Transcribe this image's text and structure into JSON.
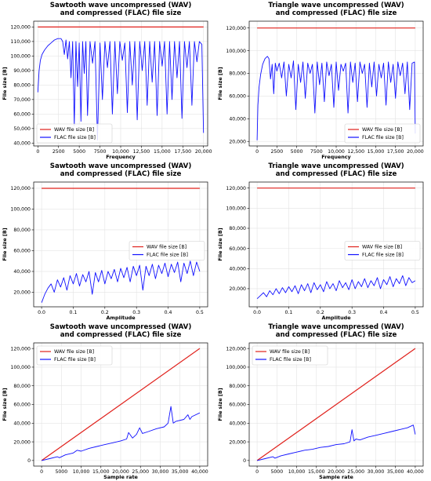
{
  "legend_labels": {
    "wav": "WAV file size [B]",
    "flac": "FLAC file size [B]"
  },
  "colors": {
    "wav": "#e0201b",
    "flac": "#1010ff"
  },
  "chart_data": [
    {
      "type": "line",
      "title": [
        "Sawtooth wave uncompressed (WAV)",
        "and compressed (FLAC) file size"
      ],
      "xlabel": "Frequency",
      "ylabel": "File size [B]",
      "xlim": [
        -500,
        20500
      ],
      "ylim": [
        38000,
        124000
      ],
      "xticks": [
        0,
        2500,
        5000,
        7500,
        10000,
        12500,
        15000,
        17500,
        20000
      ],
      "xtick_labels": [
        "0",
        "2500",
        "5000",
        "7500",
        "10,000",
        "12,500",
        "15,000",
        "17,500",
        "20,000"
      ],
      "yticks": [
        40000,
        50000,
        60000,
        70000,
        80000,
        90000,
        100000,
        110000,
        120000
      ],
      "ytick_labels": [
        "40,000",
        "50,000",
        "60,000",
        "70,000",
        "80,000",
        "90,000",
        "100,000",
        "110,000",
        "120,000"
      ],
      "legend_position": "lower-left",
      "grid": true,
      "series": [
        {
          "key": "wav",
          "name": "WAV file size [B]",
          "x": [
            0,
            20000
          ],
          "y": [
            120000,
            120000
          ]
        },
        {
          "key": "flac",
          "name": "FLAC file size [B]",
          "x": [
            0,
            150,
            300,
            500,
            800,
            1200,
            1600,
            2000,
            2400,
            2800,
            3000,
            3200,
            3400,
            3600,
            3800,
            4000,
            4200,
            4400,
            4600,
            4800,
            5000,
            5200,
            5400,
            5600,
            5800,
            6000,
            6300,
            6600,
            6900,
            7200,
            7500,
            7800,
            8100,
            8400,
            8700,
            9000,
            9300,
            9600,
            9900,
            10200,
            10500,
            10800,
            11100,
            11400,
            11700,
            12000,
            12300,
            12600,
            12900,
            13200,
            13500,
            13800,
            14100,
            14400,
            14700,
            15000,
            15300,
            15600,
            15900,
            16200,
            16500,
            16800,
            17100,
            17400,
            17700,
            18000,
            18300,
            18600,
            18900,
            19200,
            19500,
            19800,
            20000
          ],
          "y": [
            75000,
            90000,
            97000,
            101000,
            104000,
            107000,
            109000,
            111000,
            112000,
            112000,
            110000,
            101000,
            111000,
            98000,
            110000,
            85000,
            110000,
            52000,
            110000,
            79000,
            109000,
            55000,
            110000,
            88000,
            110000,
            59000,
            110000,
            95000,
            110000,
            42000,
            109000,
            70000,
            110000,
            92000,
            110000,
            60000,
            110000,
            74000,
            110000,
            97000,
            109000,
            61000,
            110000,
            80000,
            110000,
            56000,
            110000,
            90000,
            110000,
            66000,
            110000,
            82000,
            110000,
            59000,
            110000,
            93000,
            110000,
            60000,
            110000,
            70000,
            110000,
            85000,
            110000,
            57000,
            110000,
            92000,
            110000,
            66000,
            110000,
            96000,
            110000,
            108000,
            47000
          ]
        }
      ]
    },
    {
      "type": "line",
      "title": [
        "Triangle wave uncompressed (WAV)",
        "and compressed (FLAC) file size"
      ],
      "xlabel": "Frequency",
      "ylabel": "File size [B]",
      "xlim": [
        -1000,
        21000
      ],
      "ylim": [
        16000,
        126000
      ],
      "xticks": [
        0,
        2500,
        5000,
        7500,
        10000,
        12500,
        15000,
        17500,
        20000
      ],
      "xtick_labels": [
        "0",
        "2500",
        "5000",
        "7500",
        "10,000",
        "12,500",
        "15,000",
        "17,500",
        "20,000"
      ],
      "yticks": [
        20000,
        40000,
        60000,
        80000,
        100000,
        120000
      ],
      "ytick_labels": [
        "20,000",
        "40,000",
        "60,000",
        "80,000",
        "100,000",
        "120,000"
      ],
      "legend_position": "lower-right",
      "grid": true,
      "series": [
        {
          "key": "wav",
          "name": "WAV file size [B]",
          "x": [
            0,
            20000
          ],
          "y": [
            120000,
            120000
          ]
        },
        {
          "key": "flac",
          "name": "FLAC file size [B]",
          "x": [
            0,
            100,
            250,
            450,
            700,
            1000,
            1300,
            1500,
            1700,
            1900,
            2100,
            2300,
            2500,
            2800,
            3100,
            3400,
            3700,
            4000,
            4300,
            4600,
            4900,
            5200,
            5500,
            5800,
            6100,
            6400,
            6700,
            7000,
            7300,
            7600,
            7900,
            8200,
            8500,
            8800,
            9100,
            9400,
            9700,
            10000,
            10300,
            10600,
            10900,
            11200,
            11500,
            11800,
            12100,
            12400,
            12700,
            13000,
            13300,
            13600,
            13900,
            14200,
            14500,
            14800,
            15100,
            15400,
            15700,
            16000,
            16300,
            16600,
            16900,
            17200,
            17500,
            17800,
            18100,
            18400,
            18700,
            19000,
            19300,
            19600,
            19900,
            20000
          ],
          "y": [
            21000,
            52000,
            68000,
            79000,
            88000,
            93000,
            95000,
            93000,
            75000,
            88000,
            62000,
            89000,
            82000,
            89000,
            76000,
            90000,
            60000,
            88000,
            76000,
            91000,
            48000,
            88000,
            72000,
            90000,
            58000,
            89000,
            80000,
            88000,
            45000,
            90000,
            70000,
            89000,
            55000,
            90000,
            78000,
            88000,
            50000,
            90000,
            65000,
            88000,
            82000,
            89000,
            45000,
            90000,
            72000,
            89000,
            55000,
            90000,
            80000,
            88000,
            50000,
            89000,
            68000,
            90000,
            60000,
            88000,
            76000,
            89000,
            52000,
            90000,
            72000,
            88000,
            58000,
            90000,
            78000,
            89000,
            62000,
            90000,
            48000,
            89000,
            90000,
            27000
          ]
        }
      ]
    },
    {
      "type": "line",
      "title": [
        "Sawtooth wave uncompressed (WAV)",
        "and compressed (FLAC) file size"
      ],
      "xlabel": "Amplitude",
      "ylabel": "File size [B]",
      "xlim": [
        -0.025,
        0.525
      ],
      "ylim": [
        6000,
        126000
      ],
      "xticks": [
        0.0,
        0.1,
        0.2,
        0.3,
        0.4,
        0.5
      ],
      "xtick_labels": [
        "0.0",
        "0.1",
        "0.2",
        "0.3",
        "0.4",
        "0.5"
      ],
      "yticks": [
        20000,
        40000,
        60000,
        80000,
        100000,
        120000
      ],
      "ytick_labels": [
        "20,000",
        "40,000",
        "60,000",
        "80,000",
        "100,000",
        "120,000"
      ],
      "legend_position": "center-right",
      "grid": true,
      "series": [
        {
          "key": "wav",
          "name": "WAV file size [B]",
          "x": [
            0,
            0.5
          ],
          "y": [
            120000,
            120000
          ]
        },
        {
          "key": "flac",
          "name": "FLAC file size [B]",
          "x": [
            0.0,
            0.01,
            0.02,
            0.03,
            0.04,
            0.05,
            0.06,
            0.07,
            0.08,
            0.09,
            0.1,
            0.11,
            0.12,
            0.13,
            0.14,
            0.15,
            0.16,
            0.17,
            0.18,
            0.19,
            0.2,
            0.21,
            0.22,
            0.23,
            0.24,
            0.25,
            0.26,
            0.27,
            0.28,
            0.29,
            0.3,
            0.31,
            0.32,
            0.33,
            0.34,
            0.35,
            0.36,
            0.37,
            0.38,
            0.39,
            0.4,
            0.41,
            0.42,
            0.43,
            0.44,
            0.45,
            0.46,
            0.47,
            0.48,
            0.49,
            0.5
          ],
          "y": [
            10000,
            18000,
            24000,
            28000,
            20000,
            32000,
            25000,
            34000,
            22000,
            36000,
            28000,
            38000,
            26000,
            37000,
            30000,
            40000,
            18000,
            39000,
            30000,
            41000,
            28000,
            40000,
            33000,
            42000,
            30000,
            43000,
            34000,
            44000,
            30000,
            45000,
            36000,
            46000,
            22000,
            45000,
            36000,
            47000,
            33000,
            46000,
            38000,
            48000,
            35000,
            47000,
            39000,
            49000,
            30000,
            48000,
            38000,
            50000,
            36000,
            49000,
            40000
          ]
        }
      ]
    },
    {
      "type": "line",
      "title": [
        "Triangle wave uncompressed (WAV)",
        "and compressed (FLAC) file size"
      ],
      "xlabel": "Amplitude",
      "ylabel": "File size [B]",
      "xlim": [
        -0.025,
        0.525
      ],
      "ylim": [
        2000,
        126000
      ],
      "xticks": [
        0.0,
        0.1,
        0.2,
        0.3,
        0.4,
        0.5
      ],
      "xtick_labels": [
        "0.0",
        "0.1",
        "0.2",
        "0.3",
        "0.4",
        "0.5"
      ],
      "yticks": [
        20000,
        40000,
        60000,
        80000,
        100000,
        120000
      ],
      "ytick_labels": [
        "20,000",
        "40,000",
        "60,000",
        "80,000",
        "100,000",
        "120,000"
      ],
      "legend_position": "center-right",
      "grid": true,
      "series": [
        {
          "key": "wav",
          "name": "WAV file size [B]",
          "x": [
            0,
            0.5
          ],
          "y": [
            120000,
            120000
          ]
        },
        {
          "key": "flac",
          "name": "FLAC file size [B]",
          "x": [
            0.0,
            0.01,
            0.02,
            0.03,
            0.04,
            0.05,
            0.06,
            0.07,
            0.08,
            0.09,
            0.1,
            0.11,
            0.12,
            0.13,
            0.14,
            0.15,
            0.16,
            0.17,
            0.18,
            0.19,
            0.2,
            0.21,
            0.22,
            0.23,
            0.24,
            0.25,
            0.26,
            0.27,
            0.28,
            0.29,
            0.3,
            0.31,
            0.32,
            0.33,
            0.34,
            0.35,
            0.36,
            0.37,
            0.38,
            0.39,
            0.4,
            0.41,
            0.42,
            0.43,
            0.44,
            0.45,
            0.46,
            0.47,
            0.48,
            0.49,
            0.5
          ],
          "y": [
            10000,
            13000,
            16000,
            12000,
            18000,
            14000,
            20000,
            15000,
            21000,
            16000,
            22000,
            17000,
            23000,
            15000,
            24000,
            18000,
            25000,
            16000,
            26000,
            19000,
            24000,
            17000,
            27000,
            20000,
            25000,
            18000,
            28000,
            21000,
            26000,
            19000,
            29000,
            20000,
            27000,
            22000,
            30000,
            21000,
            28000,
            23000,
            31000,
            20000,
            29000,
            24000,
            32000,
            22000,
            30000,
            25000,
            33000,
            23000,
            31000,
            26000,
            28000
          ]
        }
      ]
    },
    {
      "type": "line",
      "title": [
        "Sawtooth wave uncompressed (WAV)",
        "and compressed (FLAC) file size"
      ],
      "xlabel": "Sample rate",
      "ylabel": "File size [B]",
      "xlim": [
        -2000,
        42000
      ],
      "ylim": [
        -6000,
        126000
      ],
      "xticks": [
        0,
        5000,
        10000,
        15000,
        20000,
        25000,
        30000,
        35000,
        40000
      ],
      "xtick_labels": [
        "0",
        "5000",
        "10,000",
        "15,000",
        "20,000",
        "25,000",
        "30,000",
        "35,000",
        "40,000"
      ],
      "yticks": [
        0,
        20000,
        40000,
        60000,
        80000,
        100000,
        120000
      ],
      "ytick_labels": [
        "0",
        "20,000",
        "40,000",
        "60,000",
        "80,000",
        "100,000",
        "120,000"
      ],
      "legend_position": "top-left",
      "grid": true,
      "series": [
        {
          "key": "wav",
          "name": "WAV file size [B]",
          "x": [
            0,
            40000
          ],
          "y": [
            0,
            120000
          ]
        },
        {
          "key": "flac",
          "name": "FLAC file size [B]",
          "x": [
            0,
            2000,
            4000,
            4500,
            6000,
            8000,
            9000,
            10000,
            12000,
            14000,
            16000,
            18000,
            20000,
            21500,
            22000,
            23000,
            24000,
            24800,
            25500,
            27000,
            29000,
            31000,
            32000,
            32700,
            33300,
            34000,
            36000,
            37000,
            37500,
            38000,
            40000
          ],
          "y": [
            0,
            2000,
            4000,
            3000,
            6000,
            8000,
            11000,
            10000,
            13000,
            15000,
            17000,
            19000,
            21000,
            23000,
            30000,
            24000,
            28000,
            35000,
            29000,
            31000,
            34000,
            36000,
            40000,
            58000,
            40000,
            42000,
            44000,
            49000,
            44000,
            47000,
            51000
          ]
        }
      ]
    },
    {
      "type": "line",
      "title": [
        "Triangle wave uncompressed (WAV)",
        "and compressed (FLAC) file size"
      ],
      "xlabel": "Sample rate",
      "ylabel": "File size [B]",
      "xlim": [
        -2000,
        42000
      ],
      "ylim": [
        -6000,
        126000
      ],
      "xticks": [
        0,
        5000,
        10000,
        15000,
        20000,
        25000,
        30000,
        35000,
        40000
      ],
      "xtick_labels": [
        "0",
        "5000",
        "10,000",
        "15,000",
        "20,000",
        "25,000",
        "30,000",
        "35,000",
        "40,000"
      ],
      "yticks": [
        0,
        20000,
        40000,
        60000,
        80000,
        100000,
        120000
      ],
      "ytick_labels": [
        "0",
        "20,000",
        "40,000",
        "60,000",
        "80,000",
        "100,000",
        "120,000"
      ],
      "legend_position": "top-left",
      "grid": true,
      "series": [
        {
          "key": "wav",
          "name": "WAV file size [B]",
          "x": [
            0,
            40000
          ],
          "y": [
            0,
            120000
          ]
        },
        {
          "key": "flac",
          "name": "FLAC file size [B]",
          "x": [
            0,
            2000,
            4000,
            4500,
            6000,
            8000,
            10000,
            12000,
            14000,
            16000,
            18000,
            20000,
            22000,
            23500,
            24000,
            24500,
            25000,
            26000,
            28000,
            30000,
            32000,
            34000,
            36000,
            38000,
            39500,
            40000
          ],
          "y": [
            0,
            2000,
            4000,
            2500,
            5000,
            7000,
            9000,
            11000,
            12000,
            14000,
            15000,
            17000,
            18000,
            20000,
            33000,
            21000,
            23000,
            22000,
            25000,
            27000,
            29000,
            31000,
            33000,
            35000,
            38000,
            28000
          ]
        }
      ]
    }
  ]
}
